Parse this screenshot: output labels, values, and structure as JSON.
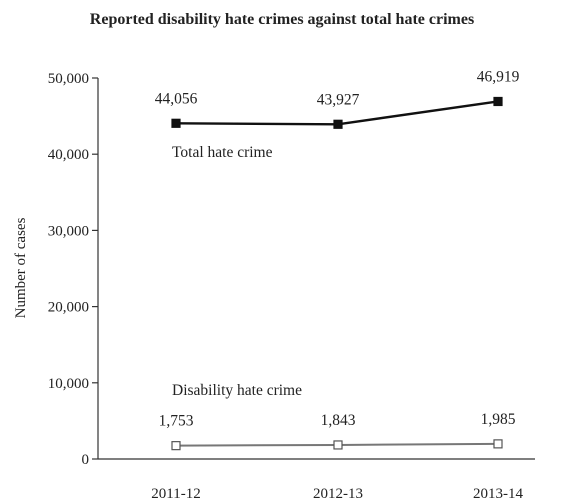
{
  "chart_data": {
    "type": "line",
    "title": "Reported disability hate crimes against total hate crimes",
    "xlabel": "",
    "ylabel": "Number of cases",
    "categories": [
      "2011-12",
      "2012-13",
      "2013-14"
    ],
    "ylim": [
      0,
      50000
    ],
    "yticks": [
      0,
      10000,
      20000,
      30000,
      40000,
      50000
    ],
    "ytick_labels": [
      "0",
      "10,000",
      "20,000",
      "30,000",
      "40,000",
      "50,000"
    ],
    "grid": false,
    "series": [
      {
        "name": "Total hate crime",
        "values": [
          44056,
          43927,
          46919
        ],
        "labels": [
          "44,056",
          "43,927",
          "46,919"
        ],
        "color": "#111111",
        "marker": "filled-square"
      },
      {
        "name": "Disability hate crime",
        "values": [
          1753,
          1843,
          1985
        ],
        "labels": [
          "1,753",
          "1,843",
          "1,985"
        ],
        "color": "#777777",
        "marker": "open-square"
      }
    ]
  }
}
